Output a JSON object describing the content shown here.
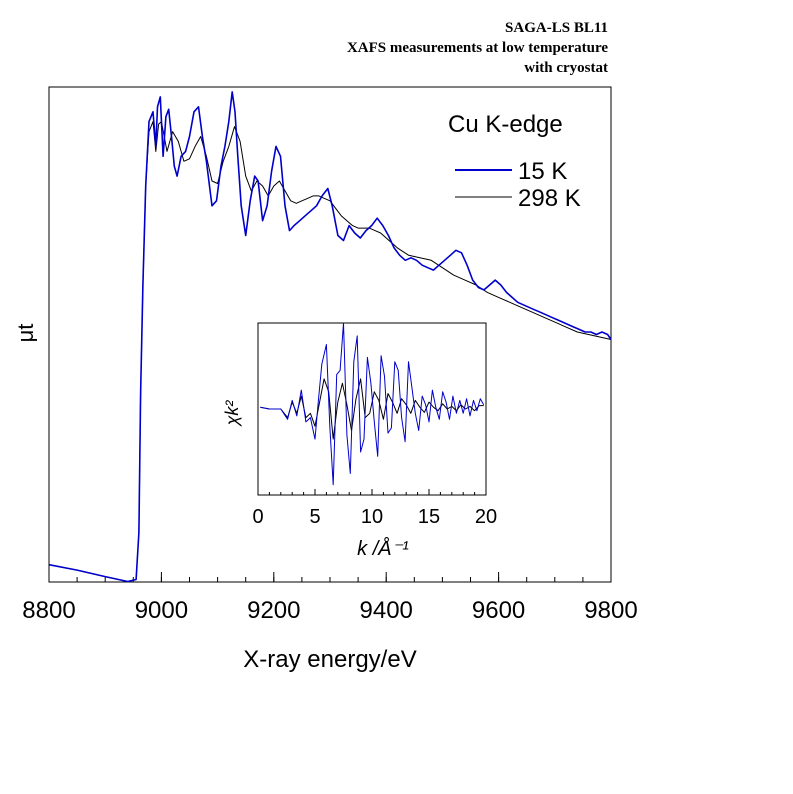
{
  "header": {
    "line1": "SAGA-LS BL11",
    "line2": "XAFS measurements at low temperature",
    "line3": "with cryostat"
  },
  "chart_data": [
    {
      "type": "line",
      "title": "Cu K-edge",
      "xlabel": "X-ray energy/eV",
      "ylabel": "μt",
      "xlim": [
        8800,
        9800
      ],
      "ylim": [
        0.0,
        1.0
      ],
      "xticks": [
        "8800",
        "9000",
        "9200",
        "9400",
        "9600",
        "9800"
      ],
      "y_tick_labels": false,
      "legend": "top-right",
      "series": [
        {
          "name": "15 K",
          "color": "#0000cc",
          "x": [
            8800,
            8850,
            8900,
            8940,
            8955,
            8960,
            8963,
            8967,
            8972,
            8978,
            8985,
            8990,
            8993,
            8998,
            9003,
            9008,
            9013,
            9018,
            9023,
            9028,
            9035,
            9043,
            9050,
            9058,
            9066,
            9073,
            9080,
            9090,
            9098,
            9106,
            9113,
            9120,
            9126,
            9131,
            9136,
            9142,
            9150,
            9158,
            9166,
            9172,
            9180,
            9188,
            9196,
            9204,
            9212,
            9220,
            9228,
            9236,
            9246,
            9256,
            9266,
            9276,
            9286,
            9296,
            9304,
            9314,
            9324,
            9334,
            9344,
            9354,
            9364,
            9374,
            9384,
            9394,
            9404,
            9414,
            9424,
            9434,
            9444,
            9454,
            9464,
            9474,
            9484,
            9494,
            9504,
            9514,
            9524,
            9534,
            9544,
            9554,
            9564,
            9574,
            9584,
            9594,
            9604,
            9614,
            9624,
            9634,
            9644,
            9654,
            9664,
            9674,
            9684,
            9694,
            9704,
            9714,
            9724,
            9734,
            9744,
            9754,
            9764,
            9774,
            9784,
            9794,
            9800
          ],
          "y": [
            0.035,
            0.024,
            0.011,
            0.001,
            0.005,
            0.1,
            0.38,
            0.6,
            0.8,
            0.93,
            0.95,
            0.88,
            0.96,
            0.98,
            0.86,
            0.94,
            0.955,
            0.9,
            0.84,
            0.82,
            0.86,
            0.87,
            0.9,
            0.95,
            0.96,
            0.9,
            0.85,
            0.76,
            0.77,
            0.84,
            0.88,
            0.93,
            0.99,
            0.95,
            0.86,
            0.76,
            0.7,
            0.77,
            0.82,
            0.81,
            0.73,
            0.76,
            0.83,
            0.88,
            0.86,
            0.76,
            0.71,
            0.72,
            0.73,
            0.74,
            0.75,
            0.76,
            0.78,
            0.795,
            0.76,
            0.7,
            0.69,
            0.72,
            0.705,
            0.695,
            0.71,
            0.72,
            0.735,
            0.72,
            0.7,
            0.675,
            0.66,
            0.65,
            0.655,
            0.65,
            0.64,
            0.635,
            0.63,
            0.64,
            0.65,
            0.66,
            0.67,
            0.665,
            0.64,
            0.61,
            0.595,
            0.59,
            0.6,
            0.61,
            0.6,
            0.585,
            0.575,
            0.565,
            0.56,
            0.555,
            0.55,
            0.545,
            0.54,
            0.535,
            0.53,
            0.525,
            0.52,
            0.515,
            0.51,
            0.505,
            0.505,
            0.5,
            0.505,
            0.5,
            0.49
          ]
        },
        {
          "name": "298 K",
          "color": "#000000",
          "x": [
            8800,
            8850,
            8900,
            8940,
            8955,
            8960,
            8963,
            8967,
            8972,
            8978,
            8985,
            8990,
            8995,
            9000,
            9010,
            9020,
            9030,
            9040,
            9050,
            9060,
            9070,
            9080,
            9090,
            9100,
            9110,
            9120,
            9130,
            9140,
            9150,
            9160,
            9170,
            9180,
            9190,
            9200,
            9210,
            9220,
            9230,
            9240,
            9250,
            9260,
            9270,
            9280,
            9290,
            9300,
            9310,
            9320,
            9330,
            9340,
            9350,
            9360,
            9370,
            9380,
            9390,
            9400,
            9420,
            9440,
            9460,
            9480,
            9500,
            9520,
            9540,
            9560,
            9580,
            9600,
            9620,
            9640,
            9660,
            9680,
            9700,
            9720,
            9740,
            9760,
            9780,
            9800
          ],
          "y": [
            0.035,
            0.024,
            0.011,
            0.001,
            0.005,
            0.1,
            0.38,
            0.6,
            0.8,
            0.91,
            0.93,
            0.87,
            0.925,
            0.93,
            0.87,
            0.91,
            0.89,
            0.85,
            0.855,
            0.88,
            0.9,
            0.86,
            0.81,
            0.805,
            0.85,
            0.88,
            0.92,
            0.89,
            0.82,
            0.79,
            0.81,
            0.8,
            0.78,
            0.8,
            0.81,
            0.79,
            0.77,
            0.765,
            0.77,
            0.775,
            0.78,
            0.78,
            0.775,
            0.77,
            0.755,
            0.74,
            0.73,
            0.72,
            0.715,
            0.715,
            0.715,
            0.71,
            0.705,
            0.695,
            0.675,
            0.66,
            0.655,
            0.65,
            0.635,
            0.62,
            0.61,
            0.6,
            0.585,
            0.575,
            0.565,
            0.555,
            0.545,
            0.535,
            0.525,
            0.515,
            0.505,
            0.5,
            0.495,
            0.49
          ]
        }
      ]
    },
    {
      "type": "line",
      "xlabel": "k /Å⁻¹",
      "ylabel": "χk²",
      "xlim": [
        0,
        20
      ],
      "ylim": [
        -1.0,
        1.0
      ],
      "xticks": [
        "0",
        "5",
        "10",
        "15",
        "20"
      ],
      "y_tick_labels": false,
      "series": [
        {
          "color": "#0000cc",
          "x": [
            0.2,
            1,
            2,
            2.6,
            3,
            3.4,
            3.8,
            4.2,
            4.6,
            5,
            5.3,
            5.6,
            6,
            6.3,
            6.6,
            6.9,
            7.2,
            7.5,
            7.8,
            8.1,
            8.4,
            8.7,
            9,
            9.3,
            9.6,
            9.9,
            10.2,
            10.5,
            10.8,
            11.1,
            11.4,
            11.7,
            12,
            12.3,
            12.6,
            12.9,
            13.2,
            13.5,
            13.8,
            14.1,
            14.4,
            14.7,
            15,
            15.3,
            15.6,
            15.9,
            16.2,
            16.5,
            16.8,
            17.1,
            17.4,
            17.7,
            18,
            18.3,
            18.6,
            18.9,
            19.2,
            19.5,
            19.8
          ],
          "y": [
            0.02,
            0.0,
            0.0,
            -0.12,
            0.1,
            -0.08,
            0.22,
            -0.15,
            -0.1,
            -0.35,
            0.1,
            0.52,
            0.75,
            -0.2,
            -0.88,
            0.4,
            0.45,
            1.0,
            -0.3,
            -0.75,
            0.55,
            0.85,
            -0.5,
            -0.35,
            0.6,
            0.3,
            -0.15,
            -0.55,
            0.62,
            0.38,
            -0.28,
            -0.22,
            0.55,
            0.45,
            -0.1,
            -0.38,
            0.55,
            0.25,
            -0.05,
            -0.25,
            0.15,
            0.05,
            -0.15,
            0.22,
            0.02,
            -0.12,
            0.2,
            0.08,
            -0.12,
            0.15,
            -0.05,
            0.1,
            -0.05,
            0.12,
            -0.08,
            0.1,
            -0.02,
            0.12,
            0.05
          ]
        },
        {
          "color": "#000000",
          "x": [
            0.2,
            1,
            2,
            2.6,
            3,
            3.4,
            3.8,
            4.2,
            4.6,
            5,
            5.4,
            5.8,
            6.2,
            6.6,
            7,
            7.4,
            7.8,
            8.2,
            8.6,
            9,
            9.4,
            9.8,
            10.2,
            10.6,
            11,
            11.4,
            11.8,
            12.2,
            12.6,
            13,
            13.4,
            13.8,
            14.2,
            14.6,
            15,
            15.4,
            15.8,
            16.2,
            16.6,
            17,
            17.4,
            17.8,
            18.2,
            18.6,
            19,
            19.4,
            19.8
          ],
          "y": [
            0.02,
            0.0,
            0.0,
            -0.1,
            0.08,
            -0.05,
            0.15,
            -0.1,
            -0.05,
            -0.2,
            0.08,
            0.35,
            0.2,
            -0.35,
            0.08,
            0.3,
            0.05,
            -0.25,
            0.12,
            0.35,
            -0.1,
            -0.05,
            0.2,
            0.1,
            -0.12,
            0.18,
            0.08,
            -0.05,
            0.12,
            0.05,
            -0.05,
            0.1,
            0.02,
            -0.04,
            0.08,
            0.02,
            -0.02,
            0.06,
            0.0,
            0.03,
            -0.02,
            0.05,
            0.0,
            0.03,
            -0.02,
            0.04,
            0.04
          ]
        }
      ]
    }
  ]
}
